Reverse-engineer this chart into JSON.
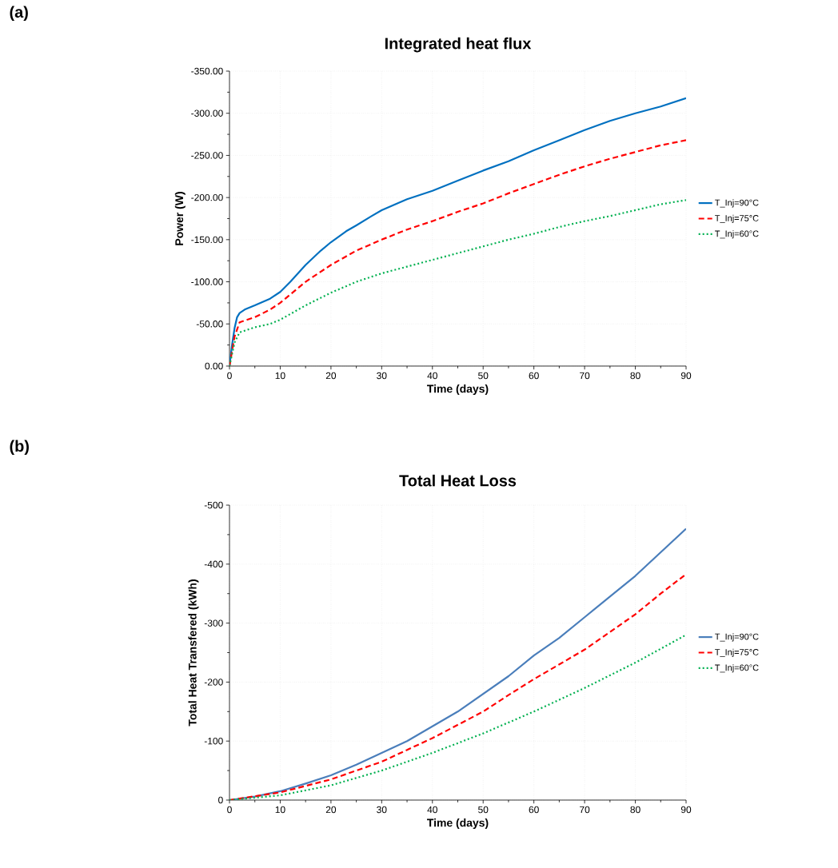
{
  "chart_data": [
    {
      "type": "line",
      "title": "Integrated heat flux",
      "xlabel": "Time (days)",
      "ylabel": "Power (W)",
      "annotations": [
        "(a)"
      ],
      "xlim": [
        0,
        90
      ],
      "xticks": [
        0,
        10,
        20,
        30,
        40,
        50,
        60,
        70,
        80,
        90
      ],
      "ylim": [
        0,
        -350
      ],
      "yticks": [
        {
          "value": 0,
          "label": "0.00"
        },
        {
          "value": -50,
          "label": "-50.00"
        },
        {
          "value": -100,
          "label": "-100.00"
        },
        {
          "value": -150,
          "label": "-150.00"
        },
        {
          "value": -200,
          "label": "-200.00"
        },
        {
          "value": -250,
          "label": "-250.00"
        },
        {
          "value": -300,
          "label": "-300.00"
        },
        {
          "value": -350,
          "label": "-350.00"
        }
      ],
      "grid": true,
      "legend": "right",
      "series": [
        {
          "name": "T_Inj=90°C",
          "color": "#0070c0",
          "line_style": "solid",
          "x": [
            0,
            0.5,
            1,
            1.5,
            2,
            3,
            5,
            8,
            10,
            12,
            15,
            18,
            20,
            23,
            25,
            28,
            30,
            35,
            40,
            45,
            50,
            55,
            60,
            65,
            70,
            75,
            80,
            85,
            90
          ],
          "values": [
            0,
            -25,
            -45,
            -58,
            -63,
            -67,
            -72,
            -80,
            -88,
            -100,
            -120,
            -137,
            -147,
            -160,
            -167,
            -178,
            -185,
            -198,
            -208,
            -220,
            -232,
            -243,
            -256,
            -268,
            -280,
            -291,
            -300,
            -308,
            -318
          ]
        },
        {
          "name": "T_Inj=75°C",
          "color": "#ff0000",
          "line_style": "dashed",
          "x": [
            0,
            1,
            2,
            5,
            8,
            10,
            13,
            15,
            20,
            25,
            30,
            35,
            40,
            45,
            50,
            55,
            60,
            65,
            70,
            75,
            80,
            85,
            90
          ],
          "values": [
            0,
            -35,
            -52,
            -58,
            -67,
            -75,
            -90,
            -100,
            -120,
            -137,
            -150,
            -162,
            -172,
            -183,
            -193,
            -205,
            -216,
            -227,
            -237,
            -246,
            -254,
            -262,
            -268
          ]
        },
        {
          "name": "T_Inj=60°C",
          "color": "#00b050",
          "line_style": "dotted",
          "x": [
            0,
            1,
            2,
            5,
            8,
            10,
            15,
            20,
            25,
            30,
            35,
            40,
            45,
            50,
            55,
            60,
            65,
            70,
            75,
            80,
            85,
            90
          ],
          "values": [
            0,
            -28,
            -40,
            -46,
            -50,
            -55,
            -72,
            -87,
            -100,
            -110,
            -118,
            -126,
            -134,
            -142,
            -150,
            -157,
            -165,
            -172,
            -178,
            -185,
            -192,
            -197
          ]
        }
      ]
    },
    {
      "type": "line",
      "title": "Total Heat Loss",
      "xlabel": "Time (days)",
      "ylabel": "Total Heat Transfered (kWh)",
      "annotations": [
        "(b)"
      ],
      "xlim": [
        0,
        90
      ],
      "xticks": [
        0,
        10,
        20,
        30,
        40,
        50,
        60,
        70,
        80,
        90
      ],
      "ylim": [
        0,
        -500
      ],
      "yticks": [
        0,
        -100,
        -200,
        -300,
        -400,
        -500
      ],
      "grid": true,
      "legend": "right",
      "series": [
        {
          "name": "T_Inj=90°C",
          "color": "#4a7ebb",
          "line_style": "solid",
          "x": [
            0,
            5,
            10,
            15,
            20,
            25,
            30,
            35,
            40,
            45,
            50,
            55,
            60,
            65,
            70,
            75,
            80,
            85,
            90
          ],
          "values": [
            0,
            -6,
            -15,
            -28,
            -42,
            -60,
            -80,
            -100,
            -125,
            -150,
            -180,
            -210,
            -245,
            -275,
            -310,
            -345,
            -380,
            -420,
            -460
          ]
        },
        {
          "name": "T_Inj=75°C",
          "color": "#ff0000",
          "line_style": "dashed",
          "x": [
            0,
            10,
            20,
            30,
            40,
            50,
            55,
            60,
            65,
            70,
            75,
            80,
            85,
            90
          ],
          "values": [
            0,
            -13,
            -35,
            -65,
            -105,
            -150,
            -178,
            -205,
            -230,
            -255,
            -285,
            -315,
            -350,
            -383
          ]
        },
        {
          "name": "T_Inj=60°C",
          "color": "#00b050",
          "line_style": "dotted",
          "x": [
            0,
            10,
            20,
            30,
            40,
            50,
            60,
            70,
            80,
            90
          ],
          "values": [
            0,
            -8,
            -25,
            -50,
            -80,
            -113,
            -150,
            -190,
            -233,
            -280
          ]
        }
      ]
    }
  ]
}
